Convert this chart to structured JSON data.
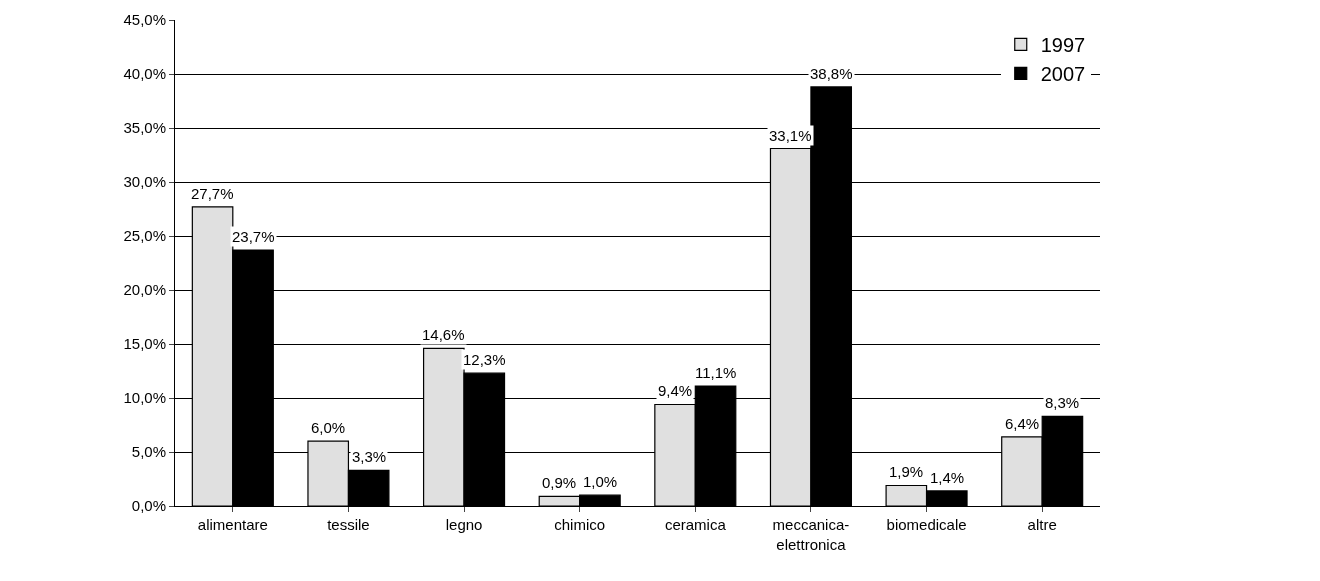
{
  "chart_data": {
    "type": "bar",
    "categories": [
      "alimentare",
      "tessile",
      "legno",
      "chimico",
      "ceramica",
      "meccanica-elettronica",
      "biomedicale",
      "altre"
    ],
    "series": [
      {
        "name": "1997",
        "color": "#e0e0e0",
        "values": [
          27.7,
          6.0,
          14.6,
          0.9,
          9.4,
          33.1,
          1.9,
          6.4
        ],
        "value_labels": [
          "27,7%",
          "6,0%",
          "14,6%",
          "0,9%",
          "9,4%",
          "33,1%",
          "1,9%",
          "6,4%"
        ]
      },
      {
        "name": "2007",
        "color": "#000000",
        "values": [
          23.7,
          3.3,
          12.3,
          1.0,
          11.1,
          38.8,
          1.4,
          8.3
        ],
        "value_labels": [
          "23,7%",
          "3,3%",
          "12,3%",
          "1,0%",
          "11,1%",
          "38,8%",
          "1,4%",
          "8,3%"
        ]
      }
    ],
    "ylim": [
      0,
      45
    ],
    "yticks": [
      {
        "value": 0,
        "label": "0,0%"
      },
      {
        "value": 5,
        "label": "5,0%"
      },
      {
        "value": 10,
        "label": "10,0%"
      },
      {
        "value": 15,
        "label": "15,0%"
      },
      {
        "value": 20,
        "label": "20,0%"
      },
      {
        "value": 25,
        "label": "25,0%"
      },
      {
        "value": 30,
        "label": "30,0%"
      },
      {
        "value": 35,
        "label": "35,0%"
      },
      {
        "value": 40,
        "label": "40,0%"
      },
      {
        "value": 45,
        "label": "45,0%"
      }
    ],
    "grid": "y",
    "legend": "top right"
  }
}
